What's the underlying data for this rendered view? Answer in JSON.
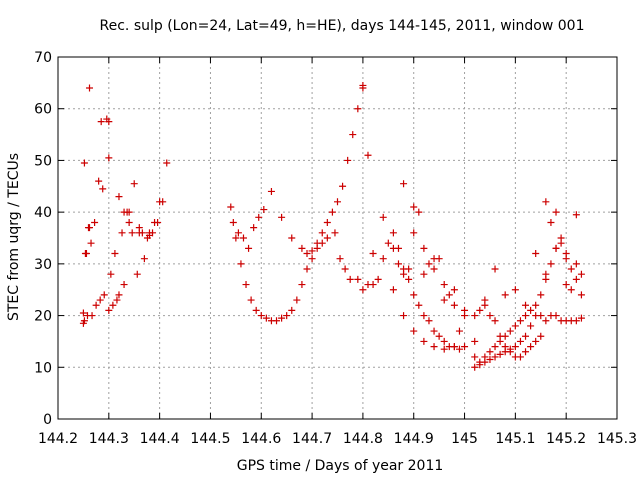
{
  "chart_data": {
    "type": "scatter",
    "title": "Rec. sulp (Lon=24, Lat=49, h=HE), days 144-145, 2011, window 001",
    "xlabel": "GPS time / Days of year 2011",
    "ylabel": "STEC from uqrg / TECUs",
    "xlim": [
      144.2,
      145.3
    ],
    "ylim": [
      0,
      70
    ],
    "xticks": [
      144.2,
      144.3,
      144.4,
      144.5,
      144.6,
      144.7,
      144.8,
      144.9,
      145,
      145.1,
      145.2,
      145.3
    ],
    "xtick_labels": [
      "144.2",
      "144.3",
      "144.4",
      "144.5",
      "144.6",
      "144.7",
      "144.8",
      "144.9",
      "145",
      "145.1",
      "145.2",
      "145.3"
    ],
    "yticks": [
      0,
      10,
      20,
      30,
      40,
      50,
      60,
      70
    ],
    "ytick_labels": [
      "0",
      "10",
      "20",
      "30",
      "40",
      "50",
      "60",
      "70"
    ],
    "grid": true,
    "marker": "plus",
    "color": "#cc0000",
    "series": [
      {
        "x": [
          144.25,
          144.252,
          144.256,
          144.26,
          144.265,
          144.272,
          144.28,
          144.288,
          144.296,
          144.304,
          144.312,
          144.32,
          144.33,
          144.34,
          144.35,
          144.36,
          144.37,
          144.38,
          144.39,
          144.4,
          144.25,
          144.254,
          144.258,
          144.262,
          144.267,
          144.275,
          144.283,
          144.291,
          144.3,
          144.308,
          144.316,
          144.326,
          144.336,
          144.346,
          144.356,
          144.366,
          144.376,
          144.386,
          144.396,
          144.406,
          144.414,
          144.252,
          144.285,
          144.3
        ],
        "y": [
          20.5,
          19,
          32,
          37,
          34,
          38,
          46,
          44.5,
          58,
          28,
          32,
          24,
          26,
          40,
          45.5,
          37,
          31,
          35.5,
          38,
          42,
          18.5,
          32,
          20,
          37,
          20,
          22,
          23,
          24,
          21,
          22,
          23,
          36,
          40,
          36,
          28,
          36,
          35,
          36,
          38,
          42,
          49.5,
          49.5,
          57.5,
          57.5
        ]
      },
      {
        "x": [
          144.262,
          144.3,
          144.32,
          144.33,
          144.34,
          144.36,
          144.38
        ],
        "y": [
          64,
          50.5,
          43,
          40,
          38,
          36,
          36
        ]
      },
      {
        "x": [
          144.54,
          144.55,
          144.56,
          144.57,
          144.58,
          144.59,
          144.6,
          144.61,
          144.62,
          144.63,
          144.64,
          144.65,
          144.66,
          144.67,
          144.68,
          144.69,
          144.7,
          144.71,
          144.72,
          144.73,
          144.74,
          144.75,
          144.76,
          144.77,
          144.78,
          144.79,
          144.8,
          144.81
        ],
        "y": [
          41,
          35,
          30,
          26,
          23,
          21,
          20,
          19.5,
          19,
          19,
          19.5,
          20,
          21,
          23,
          26,
          29,
          31,
          34,
          36,
          38,
          40,
          42,
          45,
          50,
          55,
          60,
          64,
          51
        ]
      },
      {
        "x": [
          144.545,
          144.555,
          144.565,
          144.575,
          144.585,
          144.595,
          144.605,
          144.62,
          144.64,
          144.66,
          144.68,
          144.69,
          144.7,
          144.71,
          144.72,
          144.73,
          144.745,
          144.755,
          144.765,
          144.775
        ],
        "y": [
          38,
          36,
          35,
          33,
          37,
          39,
          40.5,
          44,
          39,
          35,
          33,
          32,
          32.5,
          33,
          34,
          35,
          36,
          31,
          29,
          27
        ]
      },
      {
        "x": [
          144.79,
          144.8,
          144.81,
          144.82,
          144.83,
          144.84,
          144.85,
          144.86,
          144.87,
          144.88,
          144.89,
          144.9,
          144.91,
          144.92,
          144.93,
          144.94,
          144.95,
          144.96,
          144.97,
          144.98,
          144.99,
          145.0,
          144.8,
          144.82,
          144.84,
          144.86,
          144.88,
          144.9,
          144.92,
          144.94,
          144.96,
          144.98,
          145.0,
          144.87,
          144.88,
          144.89,
          144.9,
          144.91,
          144.92,
          144.93,
          144.94,
          144.95,
          144.96,
          144.97,
          144.98,
          144.99,
          145.0,
          144.86,
          144.88,
          144.9,
          144.92,
          144.94,
          144.96,
          144.98
        ],
        "y": [
          27,
          25,
          26,
          26,
          27,
          31,
          34,
          36,
          33,
          29,
          27,
          24,
          22,
          20,
          19,
          17,
          16,
          15,
          14,
          14,
          13.5,
          14,
          64.5,
          32,
          39,
          33,
          45.5,
          41,
          28,
          31,
          26,
          22,
          21,
          30,
          28,
          29,
          36,
          40,
          33,
          30,
          29,
          31,
          23,
          24,
          25,
          17,
          20,
          25,
          20,
          17,
          15,
          14,
          13.5,
          14
        ]
      },
      {
        "x": [
          145.02,
          145.03,
          145.04,
          145.05,
          145.06,
          145.07,
          145.08,
          145.09,
          145.1,
          145.11,
          145.12,
          145.13,
          145.14,
          145.15,
          145.16,
          145.17,
          145.18,
          145.19,
          145.2,
          145.21,
          145.22,
          145.23,
          145.02,
          145.03,
          145.04,
          145.05,
          145.06,
          145.07,
          145.08,
          145.09,
          145.1,
          145.11,
          145.12,
          145.13,
          145.14,
          145.15,
          145.16,
          145.17,
          145.18,
          145.19,
          145.2,
          145.21,
          145.22,
          145.23,
          145.02,
          145.03,
          145.04,
          145.05,
          145.06,
          145.07,
          145.08,
          145.09,
          145.1,
          145.11,
          145.12,
          145.13,
          145.14,
          145.15,
          145.16,
          145.17,
          145.18,
          145.19,
          145.2,
          145.21,
          145.22,
          145.23,
          145.02,
          145.04,
          145.06,
          145.08,
          145.1,
          145.12,
          145.14,
          145.16,
          145.18,
          145.2,
          145.22
        ],
        "y": [
          10,
          11,
          12,
          13,
          14,
          15,
          16,
          17,
          18,
          19,
          20,
          21,
          22,
          24,
          27,
          30,
          33,
          35,
          32,
          29,
          27,
          24,
          12,
          10.5,
          11,
          11.5,
          12,
          12.5,
          13,
          13.5,
          14,
          15,
          16,
          18,
          20,
          20,
          42,
          38,
          40,
          34,
          31,
          25,
          30,
          28,
          20,
          21,
          23,
          20,
          19,
          16,
          14,
          13,
          12,
          12,
          13,
          14,
          15,
          16,
          19,
          20,
          20,
          19,
          19,
          19,
          19,
          19.5,
          15,
          22,
          29,
          24,
          25,
          22,
          32,
          28,
          33,
          26,
          39.5
        ]
      }
    ]
  }
}
